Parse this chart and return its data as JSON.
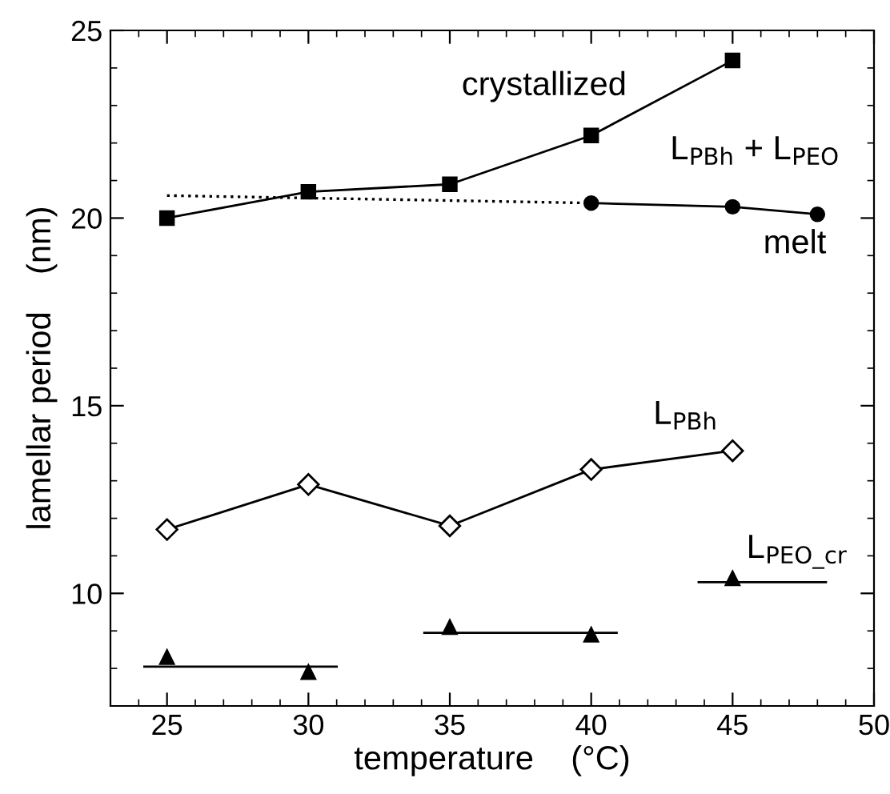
{
  "chart_data": {
    "type": "line",
    "xlabel": "temperature    (°C)",
    "ylabel": "lamellar period    (nm)",
    "xlim": [
      23,
      50
    ],
    "xticks": [
      25,
      30,
      35,
      40,
      45,
      50
    ],
    "ylim": [
      7,
      25
    ],
    "yticks": [
      10,
      15,
      20,
      25
    ],
    "grid": false,
    "legend": "right",
    "series": [
      {
        "name": "crystallized",
        "color": "#000000",
        "marker": "square",
        "line_style": "solid",
        "x": [
          25,
          30,
          35,
          40,
          45
        ],
        "values": [
          20.0,
          20.7,
          20.9,
          22.2,
          24.2
        ]
      },
      {
        "name": "melt",
        "color": "#000000",
        "marker": "circle",
        "line_style": "solid",
        "x": [
          40,
          45,
          48
        ],
        "values": [
          20.4,
          20.3,
          20.1
        ]
      },
      {
        "color": "#000000",
        "marker": "none",
        "line_style": "dotted",
        "x": [
          25,
          40
        ],
        "values": [
          20.6,
          20.4
        ]
      },
      {
        "name": "L$_{PBh}$",
        "color": "#000000",
        "marker": "diamond",
        "line_style": "solid",
        "x": [
          25,
          30,
          35,
          40,
          45
        ],
        "values": [
          11.7,
          12.9,
          11.8,
          13.3,
          13.8
        ]
      },
      {
        "name": "L$_{PEO_cr}$",
        "type": "scatter",
        "color": "#000000",
        "marker": "triangle",
        "x": [
          25,
          30,
          35,
          40,
          45
        ],
        "values": [
          8.3,
          7.9,
          9.1,
          8.9,
          10.4
        ]
      },
      {
        "color": "#000000",
        "marker": "none",
        "line_style": "solid",
        "x": [
          24.2,
          31.0
        ],
        "values": [
          8.05,
          8.05
        ]
      },
      {
        "color": "#000000",
        "marker": "none",
        "line_style": "solid",
        "x": [
          34.1,
          40.9
        ],
        "values": [
          8.95,
          8.95
        ]
      },
      {
        "color": "#000000",
        "marker": "none",
        "line_style": "solid",
        "x": [
          43.8,
          48.3
        ],
        "values": [
          10.3,
          10.3
        ]
      }
    ],
    "annotations": [
      "L$_{PBh}$ + L$_{PEO}$"
    ]
  }
}
